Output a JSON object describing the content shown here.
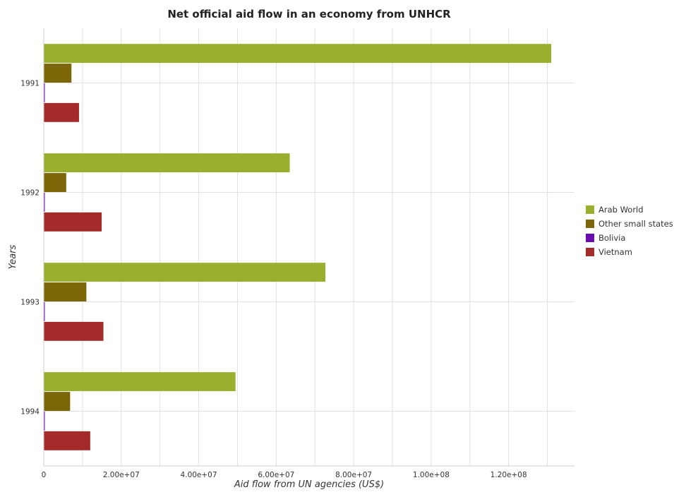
{
  "chart_data": {
    "type": "bar",
    "orientation": "horizontal",
    "title": "Net official aid flow in an economy from UNHCR",
    "xlabel": "Aid flow from UN agencies (US$)",
    "ylabel": "Years",
    "categories": [
      "1991",
      "1992",
      "1993",
      "1994"
    ],
    "series": [
      {
        "name": "Arab World",
        "color": "#9aaf2e",
        "values": [
          131000000,
          63500000,
          72700000,
          49500000
        ]
      },
      {
        "name": "Other small states",
        "color": "#7d6608",
        "values": [
          7150000,
          5800000,
          11000000,
          6800000
        ]
      },
      {
        "name": "Bolivia",
        "color": "#6a0dad",
        "values": [
          150000,
          150000,
          150000,
          150000
        ]
      },
      {
        "name": "Vietnam",
        "color": "#a52a2a",
        "values": [
          9100000,
          14950000,
          15400000,
          12000000
        ]
      }
    ],
    "xlim": [
      0,
      137000000
    ],
    "xticks": [
      0,
      20000000,
      40000000,
      60000000,
      80000000,
      100000000,
      120000000
    ],
    "xtick_labels": [
      "0",
      "2.00e+07",
      "4.00e+07",
      "6.00e+07",
      "8.00e+07",
      "1.00e+08",
      "1.20e+08"
    ],
    "grid": true,
    "legend_position": "right"
  }
}
